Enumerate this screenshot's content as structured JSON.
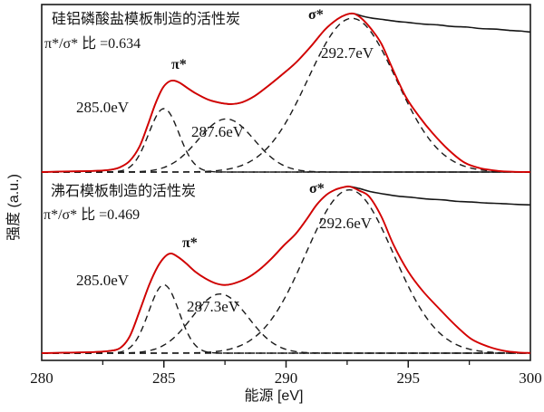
{
  "chart_data": {
    "type": "line",
    "title": "",
    "xlabel": "能源 [eV]",
    "ylabel": "强度 (a.u.)",
    "x_range": [
      280,
      300
    ],
    "x_ticks": [
      "280",
      "285",
      "290",
      "295",
      "300"
    ],
    "x_tick_values": [
      280,
      285,
      290,
      295,
      300
    ],
    "x_minor_ticks": [
      282.5,
      287.5,
      292.5,
      297.5
    ],
    "grid": false,
    "legend_position": "none",
    "colors": {
      "experimental": "#161616",
      "fit": "#d40000",
      "components": "#1a1a1a",
      "frame": "#1a1a1a"
    },
    "panels": [
      {
        "title": "硅铝磷酸盐模板制造的活性炭",
        "ratio_label": "π*/σ* 比 =0.634",
        "pi_sigma_ratio": 0.634,
        "labels": {
          "pi_star": "π*",
          "sigma_star": "σ*",
          "peak_285": "285.0eV",
          "peak_287": "287.6eV",
          "peak_292": "292.7eV"
        },
        "peaks_eV": [
          285.0,
          287.6,
          292.7
        ],
        "gaussians": [
          {
            "center": 285.0,
            "amplitude": 0.4,
            "sigma": 0.62
          },
          {
            "center": 287.55,
            "amplitude": 0.335,
            "sigma": 1.15
          },
          {
            "center": 292.7,
            "amplitude": 0.97,
            "sigma": 1.8
          }
        ],
        "experimental": [
          [
            280,
            0
          ],
          [
            280.8,
            0.003
          ],
          [
            281.6,
            0.005
          ],
          [
            282.3,
            0.008
          ],
          [
            282.8,
            0.014
          ],
          [
            283.2,
            0.03
          ],
          [
            283.6,
            0.07
          ],
          [
            284,
            0.16
          ],
          [
            284.35,
            0.3
          ],
          [
            284.65,
            0.43
          ],
          [
            284.95,
            0.53
          ],
          [
            285.2,
            0.57
          ],
          [
            285.42,
            0.577
          ],
          [
            285.65,
            0.563
          ],
          [
            285.95,
            0.532
          ],
          [
            286.3,
            0.497
          ],
          [
            286.8,
            0.458
          ],
          [
            287.3,
            0.437
          ],
          [
            287.75,
            0.429
          ],
          [
            288.2,
            0.44
          ],
          [
            288.7,
            0.478
          ],
          [
            289.2,
            0.535
          ],
          [
            289.8,
            0.61
          ],
          [
            290.4,
            0.69
          ],
          [
            291,
            0.79
          ],
          [
            291.6,
            0.9
          ],
          [
            292.1,
            0.965
          ],
          [
            292.45,
            0.993
          ],
          [
            292.76,
            1.0
          ],
          [
            293.1,
            0.985
          ],
          [
            293.5,
            0.972
          ],
          [
            294,
            0.962
          ],
          [
            294.5,
            0.951
          ],
          [
            295,
            0.944
          ],
          [
            295.6,
            0.934
          ],
          [
            296.2,
            0.929
          ],
          [
            296.8,
            0.919
          ],
          [
            297.4,
            0.915
          ],
          [
            298,
            0.905
          ],
          [
            298.6,
            0.902
          ],
          [
            299.2,
            0.893
          ],
          [
            299.6,
            0.89
          ],
          [
            300,
            0.883
          ]
        ],
        "fit": [
          [
            280,
            0
          ],
          [
            280.8,
            0.003
          ],
          [
            281.6,
            0.005
          ],
          [
            282.3,
            0.008
          ],
          [
            282.8,
            0.014
          ],
          [
            283.2,
            0.03
          ],
          [
            283.6,
            0.07
          ],
          [
            284,
            0.16
          ],
          [
            284.35,
            0.3
          ],
          [
            284.65,
            0.43
          ],
          [
            284.95,
            0.53
          ],
          [
            285.2,
            0.57
          ],
          [
            285.42,
            0.577
          ],
          [
            285.65,
            0.563
          ],
          [
            285.95,
            0.532
          ],
          [
            286.3,
            0.497
          ],
          [
            286.8,
            0.458
          ],
          [
            287.3,
            0.437
          ],
          [
            287.75,
            0.429
          ],
          [
            288.2,
            0.44
          ],
          [
            288.7,
            0.478
          ],
          [
            289.2,
            0.535
          ],
          [
            289.8,
            0.61
          ],
          [
            290.4,
            0.69
          ],
          [
            291,
            0.79
          ],
          [
            291.6,
            0.9
          ],
          [
            292.1,
            0.965
          ],
          [
            292.45,
            0.993
          ],
          [
            292.76,
            1.0
          ],
          [
            293.1,
            0.968
          ],
          [
            293.5,
            0.9
          ],
          [
            293.9,
            0.81
          ],
          [
            294.35,
            0.655
          ],
          [
            294.9,
            0.475
          ],
          [
            295.45,
            0.35
          ],
          [
            296,
            0.245
          ],
          [
            296.65,
            0.14
          ],
          [
            297.3,
            0.06
          ],
          [
            297.95,
            0.024
          ],
          [
            298.7,
            0.007
          ],
          [
            299.3,
            0.002
          ],
          [
            300,
            0
          ]
        ]
      },
      {
        "title": "沸石模板制造的活性炭",
        "ratio_label": "π*/σ* 比 =0.469",
        "pi_sigma_ratio": 0.469,
        "labels": {
          "pi_star": "π*",
          "sigma_star": "σ*",
          "peak_285": "285.0eV",
          "peak_287": "287.3eV",
          "peak_292": "292.6eV"
        },
        "peaks_eV": [
          285.0,
          287.3,
          292.6
        ],
        "gaussians": [
          {
            "center": 285.0,
            "amplitude": 0.41,
            "sigma": 0.62
          },
          {
            "center": 287.3,
            "amplitude": 0.355,
            "sigma": 1.15
          },
          {
            "center": 292.6,
            "amplitude": 0.98,
            "sigma": 1.8
          }
        ],
        "experimental": [
          [
            280,
            0
          ],
          [
            281,
            0.003
          ],
          [
            282,
            0.006
          ],
          [
            282.7,
            0.012
          ],
          [
            283.2,
            0.03
          ],
          [
            283.6,
            0.1
          ],
          [
            284,
            0.25
          ],
          [
            284.4,
            0.41
          ],
          [
            284.75,
            0.52
          ],
          [
            285.05,
            0.58
          ],
          [
            285.3,
            0.598
          ],
          [
            285.6,
            0.575
          ],
          [
            285.9,
            0.54
          ],
          [
            286.3,
            0.487
          ],
          [
            286.7,
            0.448
          ],
          [
            287.1,
            0.42
          ],
          [
            287.5,
            0.409
          ],
          [
            287.9,
            0.42
          ],
          [
            288.4,
            0.45
          ],
          [
            288.9,
            0.5
          ],
          [
            289.4,
            0.567
          ],
          [
            289.9,
            0.645
          ],
          [
            290.4,
            0.717
          ],
          [
            290.85,
            0.805
          ],
          [
            291.25,
            0.89
          ],
          [
            291.65,
            0.95
          ],
          [
            292,
            0.98
          ],
          [
            292.3,
            0.994
          ],
          [
            292.6,
            1.0
          ],
          [
            293,
            0.988
          ],
          [
            293.5,
            0.968
          ],
          [
            294,
            0.955
          ],
          [
            294.6,
            0.942
          ],
          [
            295.2,
            0.934
          ],
          [
            295.8,
            0.925
          ],
          [
            296.4,
            0.92
          ],
          [
            297,
            0.911
          ],
          [
            297.6,
            0.907
          ],
          [
            298.2,
            0.901
          ],
          [
            298.8,
            0.898
          ],
          [
            299.4,
            0.893
          ],
          [
            300,
            0.89
          ]
        ],
        "fit": [
          [
            280,
            0
          ],
          [
            281,
            0.003
          ],
          [
            282,
            0.006
          ],
          [
            282.7,
            0.012
          ],
          [
            283.2,
            0.03
          ],
          [
            283.6,
            0.1
          ],
          [
            284,
            0.25
          ],
          [
            284.4,
            0.41
          ],
          [
            284.75,
            0.52
          ],
          [
            285.05,
            0.58
          ],
          [
            285.3,
            0.598
          ],
          [
            285.6,
            0.575
          ],
          [
            285.9,
            0.54
          ],
          [
            286.3,
            0.487
          ],
          [
            286.7,
            0.448
          ],
          [
            287.1,
            0.42
          ],
          [
            287.5,
            0.409
          ],
          [
            287.9,
            0.42
          ],
          [
            288.4,
            0.45
          ],
          [
            288.9,
            0.5
          ],
          [
            289.4,
            0.567
          ],
          [
            289.9,
            0.645
          ],
          [
            290.4,
            0.717
          ],
          [
            290.85,
            0.805
          ],
          [
            291.25,
            0.89
          ],
          [
            291.65,
            0.95
          ],
          [
            292,
            0.98
          ],
          [
            292.3,
            0.994
          ],
          [
            292.6,
            1.0
          ],
          [
            293,
            0.975
          ],
          [
            293.4,
            0.94
          ],
          [
            293.9,
            0.82
          ],
          [
            294.4,
            0.65
          ],
          [
            295,
            0.49
          ],
          [
            295.6,
            0.372
          ],
          [
            296.3,
            0.262
          ],
          [
            296.95,
            0.165
          ],
          [
            297.6,
            0.083
          ],
          [
            298.3,
            0.038
          ],
          [
            298.95,
            0.013
          ],
          [
            299.5,
            0.004
          ],
          [
            300,
            0.001
          ]
        ]
      }
    ]
  }
}
